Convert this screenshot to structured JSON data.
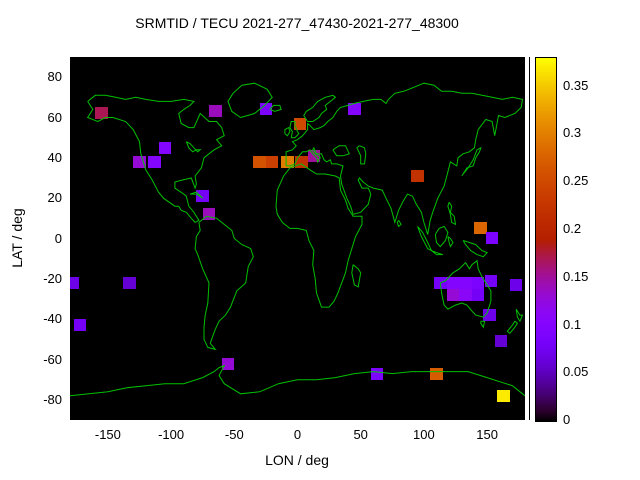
{
  "chart_data": {
    "type": "heatmap",
    "title": "SRMTID / TECU 2021-277_47430-2021-277_48300",
    "xlabel": "LON / deg",
    "ylabel": "LAT / deg",
    "xlim": [
      -180,
      180
    ],
    "ylim": [
      -90,
      90
    ],
    "x_ticks": [
      -150,
      -100,
      -50,
      0,
      50,
      100,
      150
    ],
    "y_ticks": [
      -80,
      -60,
      -40,
      -20,
      0,
      20,
      40,
      60,
      80
    ],
    "grid": false,
    "plot_bg": "#000000",
    "coastline_color": "#00c000",
    "palette": "gnuplot default black-purple-magenta-red-orange-yellow",
    "colorbar": {
      "min": 0,
      "max": 0.38,
      "ticks": [
        0,
        0.05,
        0.1,
        0.15,
        0.2,
        0.25,
        0.3,
        0.35
      ],
      "position": "right"
    },
    "cell_size_deg": {
      "lon": 10,
      "lat": 6
    },
    "cells": [
      {
        "lon": -155,
        "lat": 62,
        "value": 0.17
      },
      {
        "lon": -65,
        "lat": 63,
        "value": 0.14
      },
      {
        "lon": -25,
        "lat": 64,
        "value": 0.09
      },
      {
        "lon": 2,
        "lat": 57,
        "value": 0.25
      },
      {
        "lon": 45,
        "lat": 64,
        "value": 0.1
      },
      {
        "lon": -105,
        "lat": 45,
        "value": 0.1
      },
      {
        "lon": -125,
        "lat": 38,
        "value": 0.13
      },
      {
        "lon": -113,
        "lat": 38,
        "value": 0.1
      },
      {
        "lon": -30,
        "lat": 38,
        "value": 0.26
      },
      {
        "lon": -20,
        "lat": 38,
        "value": 0.24
      },
      {
        "lon": -8,
        "lat": 38,
        "value": 0.3
      },
      {
        "lon": 3,
        "lat": 38,
        "value": 0.22
      },
      {
        "lon": 13,
        "lat": 41,
        "value": 0.15
      },
      {
        "lon": 95,
        "lat": 31,
        "value": 0.22
      },
      {
        "lon": -75,
        "lat": 21,
        "value": 0.08
      },
      {
        "lon": -70,
        "lat": 12,
        "value": 0.14
      },
      {
        "lon": 145,
        "lat": 5,
        "value": 0.28
      },
      {
        "lon": 154,
        "lat": 0,
        "value": 0.09
      },
      {
        "lon": -178,
        "lat": -22,
        "value": 0.07
      },
      {
        "lon": -133,
        "lat": -22,
        "value": 0.06
      },
      {
        "lon": 113,
        "lat": -22,
        "value": 0.08
      },
      {
        "lon": 123,
        "lat": -22,
        "value": 0.1
      },
      {
        "lon": 133,
        "lat": -22,
        "value": 0.1
      },
      {
        "lon": 143,
        "lat": -22,
        "value": 0.09
      },
      {
        "lon": 153,
        "lat": -21,
        "value": 0.08
      },
      {
        "lon": 123,
        "lat": -28,
        "value": 0.13
      },
      {
        "lon": 133,
        "lat": -28,
        "value": 0.11
      },
      {
        "lon": 143,
        "lat": -28,
        "value": 0.08
      },
      {
        "lon": 173,
        "lat": -23,
        "value": 0.07
      },
      {
        "lon": -172,
        "lat": -43,
        "value": 0.08
      },
      {
        "lon": 152,
        "lat": -38,
        "value": 0.07
      },
      {
        "lon": 161,
        "lat": -51,
        "value": 0.06
      },
      {
        "lon": -55,
        "lat": -62,
        "value": 0.13
      },
      {
        "lon": 63,
        "lat": -67,
        "value": 0.09
      },
      {
        "lon": 110,
        "lat": -67,
        "value": 0.27
      },
      {
        "lon": 163,
        "lat": -78,
        "value": 0.37
      }
    ]
  },
  "colors": {
    "page_bg": "#ffffff",
    "plot_bg": "#000000",
    "coastline": "#00c000",
    "text": "#000000"
  }
}
